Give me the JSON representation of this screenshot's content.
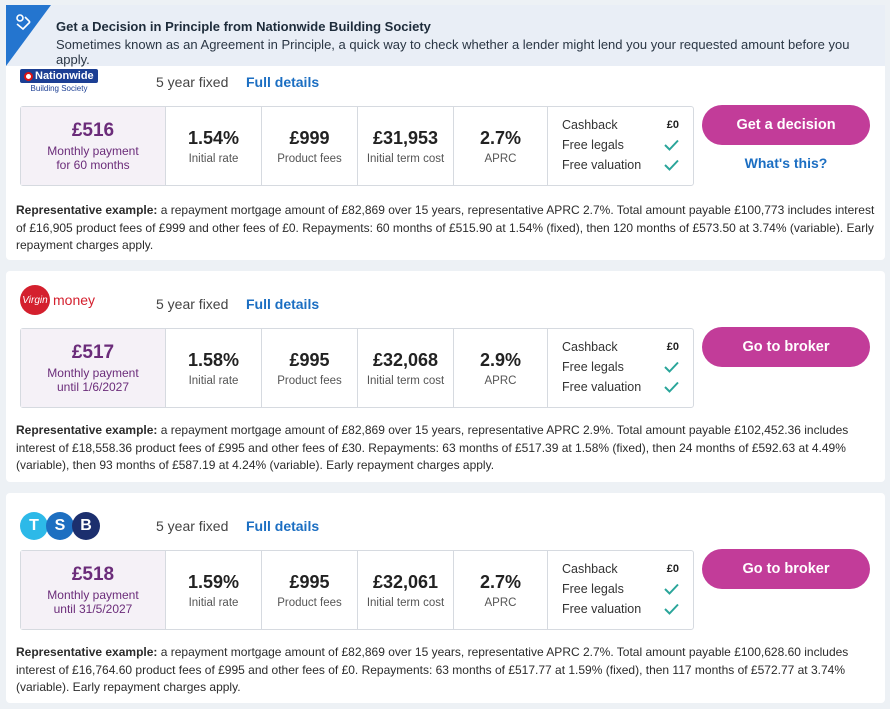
{
  "banner": {
    "title": "Get a Decision in Principle from Nationwide Building Society",
    "subtitle": "Sometimes known as an Agreement in Principle, a quick way to check whether a lender might lend you your requested amount before you apply."
  },
  "colors": {
    "accent": "#c23c99",
    "link": "#1b6ec2",
    "monthly_text": "#6b2c7a",
    "check": "#2aa59a"
  },
  "deals": [
    {
      "lender": "Nationwide Building Society",
      "logo_text": "Nationwide",
      "logo_subtext": "Building Society",
      "product": "5 year fixed",
      "details_link": "Full details",
      "monthly": "£516",
      "monthly_label_1": "Monthly payment",
      "monthly_label_2": "for 60 months",
      "rate": "1.54%",
      "rate_label": "Initial rate",
      "fees": "£999",
      "fees_label": "Product fees",
      "cost": "£31,953",
      "cost_label": "Initial term cost",
      "aprc": "2.7%",
      "aprc_label": "APRC",
      "cashback_label": "Cashback",
      "cashback_value": "£0",
      "legals_label": "Free legals",
      "valuation_label": "Free valuation",
      "cta": "Get a decision",
      "secondary_link": "What's this?",
      "rep_label": "Representative example:",
      "rep_text": " a repayment mortgage amount of £82,869 over 15 years, representative APRC 2.7%. Total amount payable £100,773 includes interest of £16,905 product fees of £999 and other fees of £0. Repayments: 60 months of £515.90 at 1.54% (fixed), then 120 months of £573.50 at 3.74% (variable). Early repayment charges apply."
    },
    {
      "lender": "Virgin Money",
      "logo_text": "Virgin",
      "logo_subtext": "money",
      "product": "5 year fixed",
      "details_link": "Full details",
      "monthly": "£517",
      "monthly_label_1": "Monthly payment",
      "monthly_label_2": "until 1/6/2027",
      "rate": "1.58%",
      "rate_label": "Initial rate",
      "fees": "£995",
      "fees_label": "Product fees",
      "cost": "£32,068",
      "cost_label": "Initial term cost",
      "aprc": "2.9%",
      "aprc_label": "APRC",
      "cashback_label": "Cashback",
      "cashback_value": "£0",
      "legals_label": "Free legals",
      "valuation_label": "Free valuation",
      "cta": "Go to broker",
      "rep_label": "Representative example:",
      "rep_text": " a repayment mortgage amount of £82,869 over 15 years, representative APRC 2.9%. Total amount payable £102,452.36 includes interest of £18,558.36 product fees of £995 and other fees of £30. Repayments: 63 months of £517.39 at 1.58% (fixed), then 24 months of £592.63 at 4.49% (variable), then 93 months of £587.19 at 4.24% (variable). Early repayment charges apply."
    },
    {
      "lender": "TSB",
      "logo_letters": [
        "T",
        "S",
        "B"
      ],
      "product": "5 year fixed",
      "details_link": "Full details",
      "monthly": "£518",
      "monthly_label_1": "Monthly payment",
      "monthly_label_2": "until 31/5/2027",
      "rate": "1.59%",
      "rate_label": "Initial rate",
      "fees": "£995",
      "fees_label": "Product fees",
      "cost": "£32,061",
      "cost_label": "Initial term cost",
      "aprc": "2.7%",
      "aprc_label": "APRC",
      "cashback_label": "Cashback",
      "cashback_value": "£0",
      "legals_label": "Free legals",
      "valuation_label": "Free valuation",
      "cta": "Go to broker",
      "rep_label": "Representative example:",
      "rep_text": " a repayment mortgage amount of £82,869 over 15 years, representative APRC 2.7%. Total amount payable £100,628.60 includes interest of £16,764.60 product fees of £995 and other fees of £0. Repayments: 63 months of £517.77 at 1.59% (fixed), then 117 months of £572.77 at 3.74% (variable). Early repayment charges apply."
    }
  ]
}
